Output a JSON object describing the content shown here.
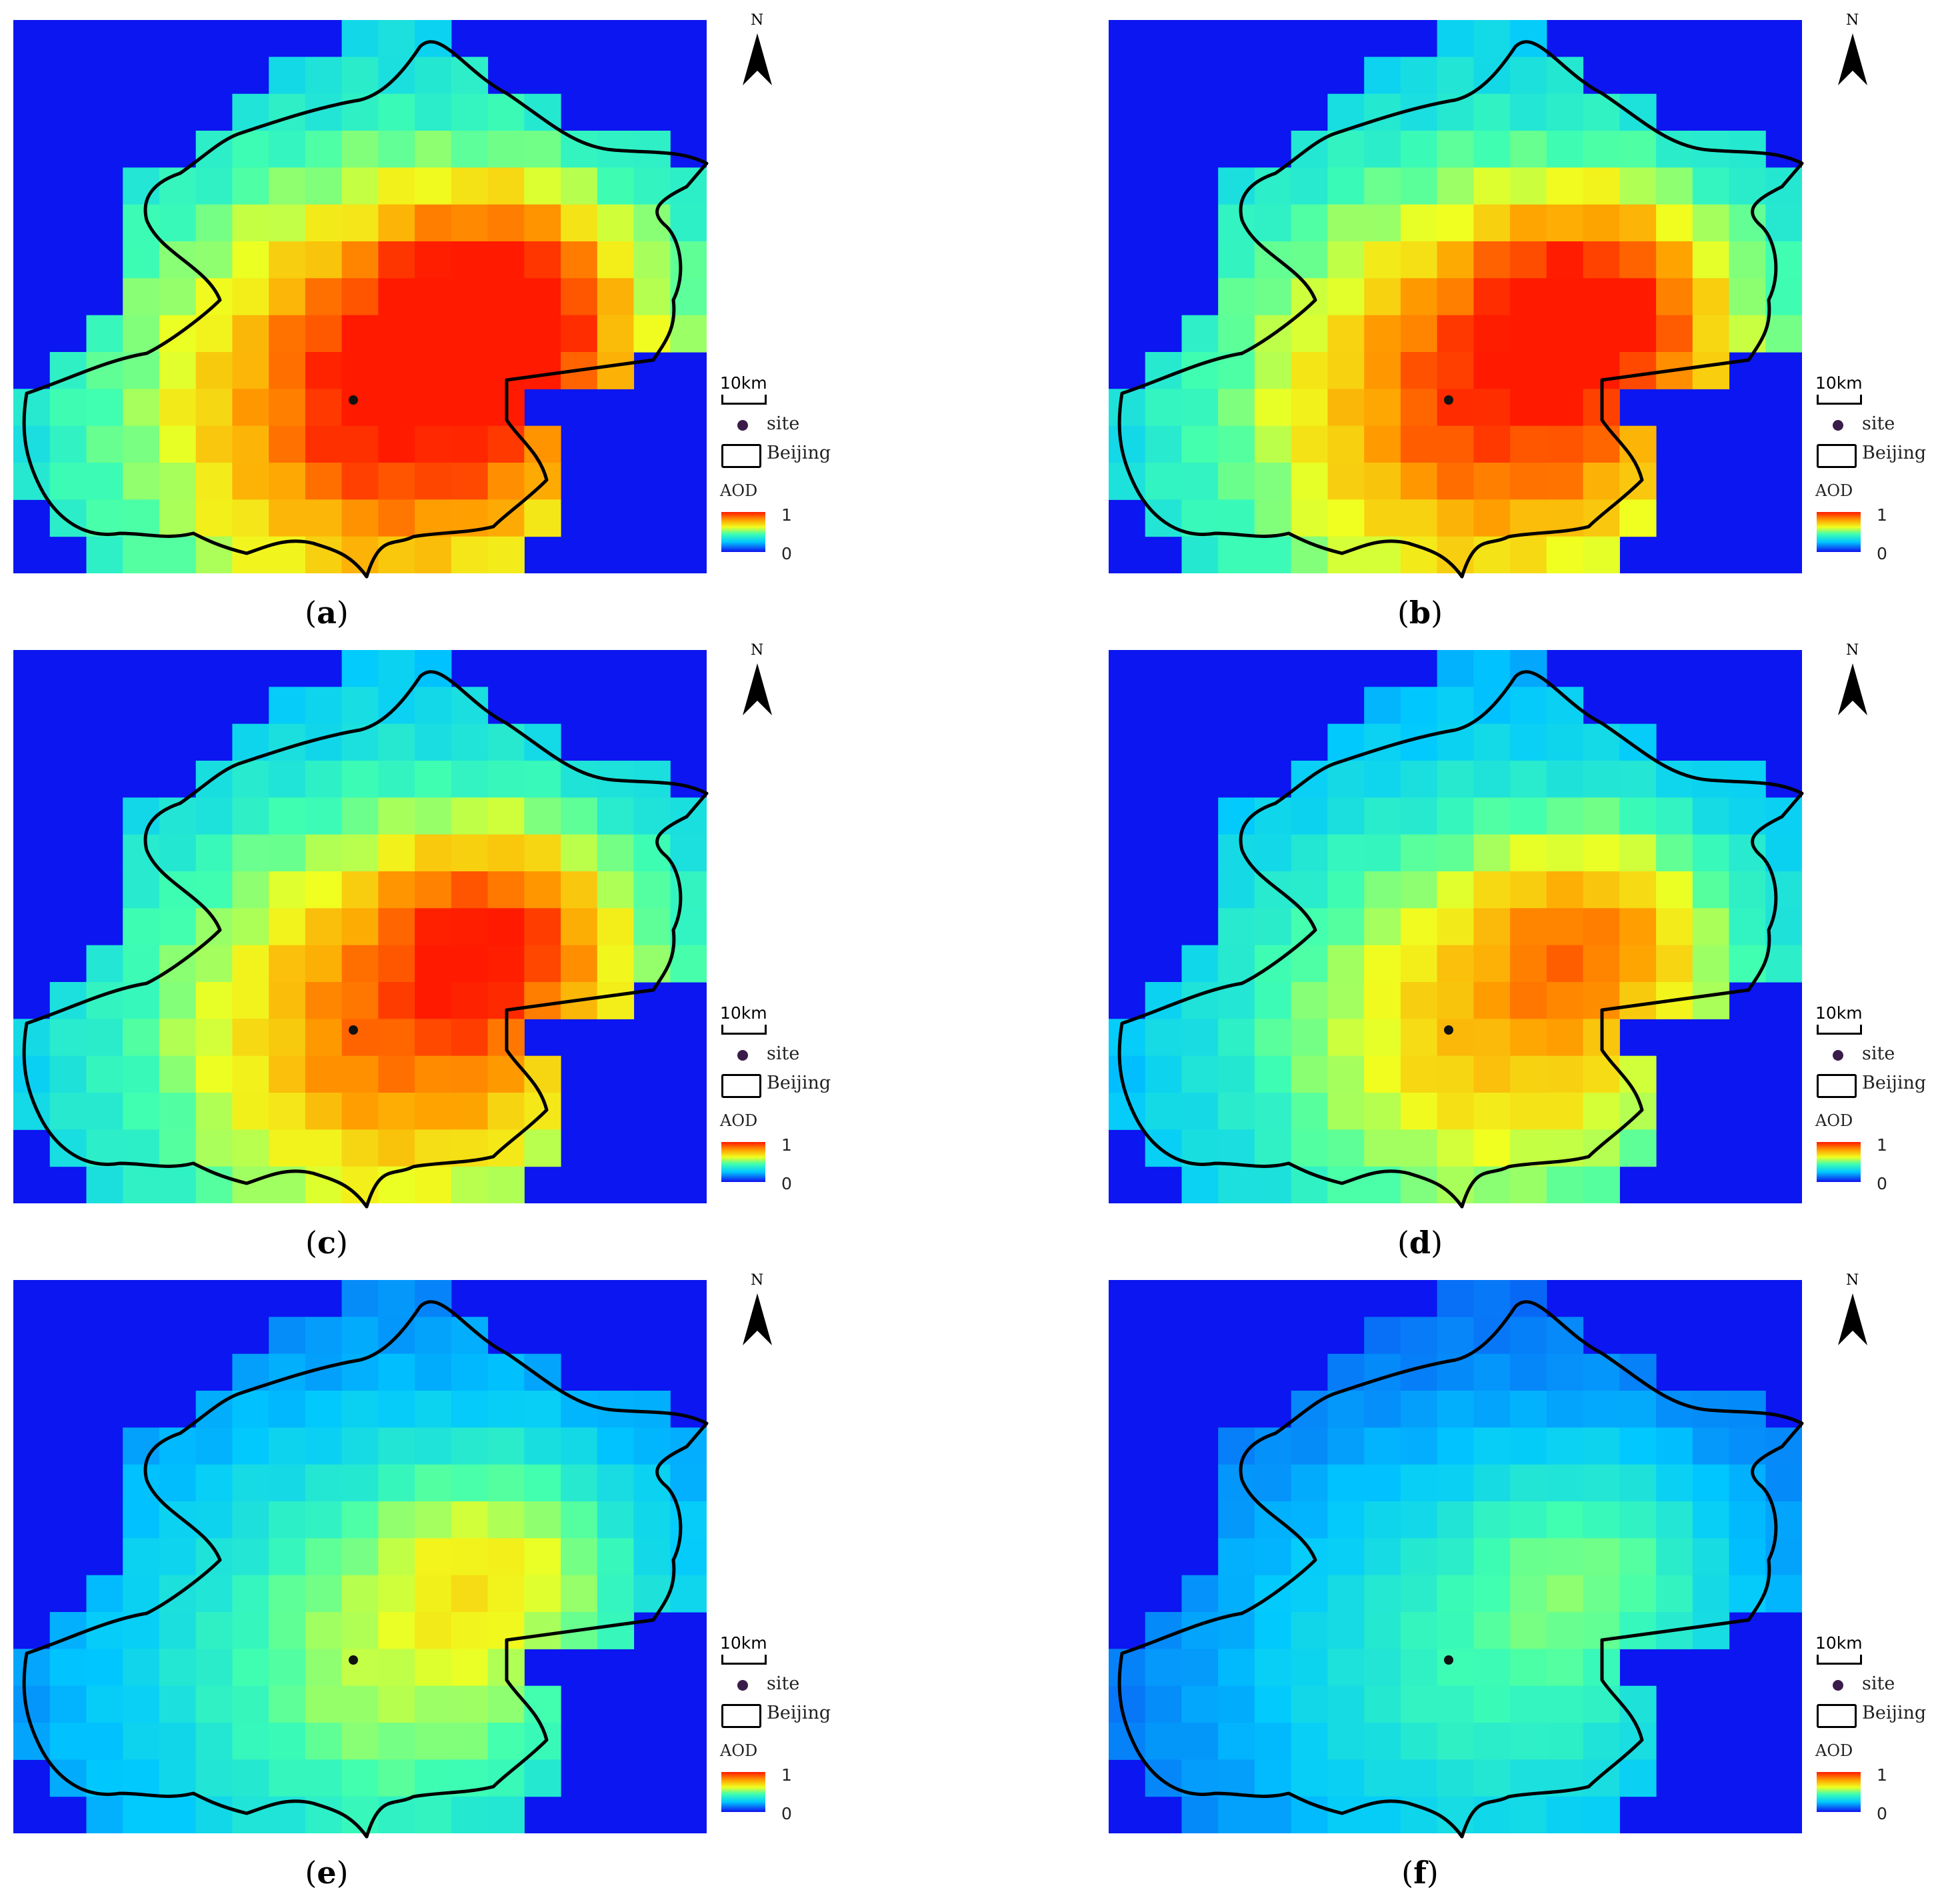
{
  "legend": {
    "north": "N",
    "scale": "10km",
    "site": "site",
    "boundary": "Beijing",
    "aod_title": "AOD",
    "aod_max": "1",
    "aod_min": "0"
  },
  "colors": {
    "out_of_region": "#0b16f0",
    "site_marker": "#3a1c4a",
    "boundary_line": "#000000"
  },
  "icons": {
    "north_arrow": "north-arrow-icon",
    "site_marker": "dot-icon",
    "boundary_key": "rectangle-outline-icon"
  },
  "panels": [
    {
      "label": "a",
      "intensity": 1.0
    },
    {
      "label": "b",
      "intensity": 0.93
    },
    {
      "label": "c",
      "intensity": 0.85
    },
    {
      "label": "d",
      "intensity": 0.72
    },
    {
      "label": "e",
      "intensity": 0.55
    },
    {
      "label": "f",
      "intensity": 0.42
    }
  ]
}
